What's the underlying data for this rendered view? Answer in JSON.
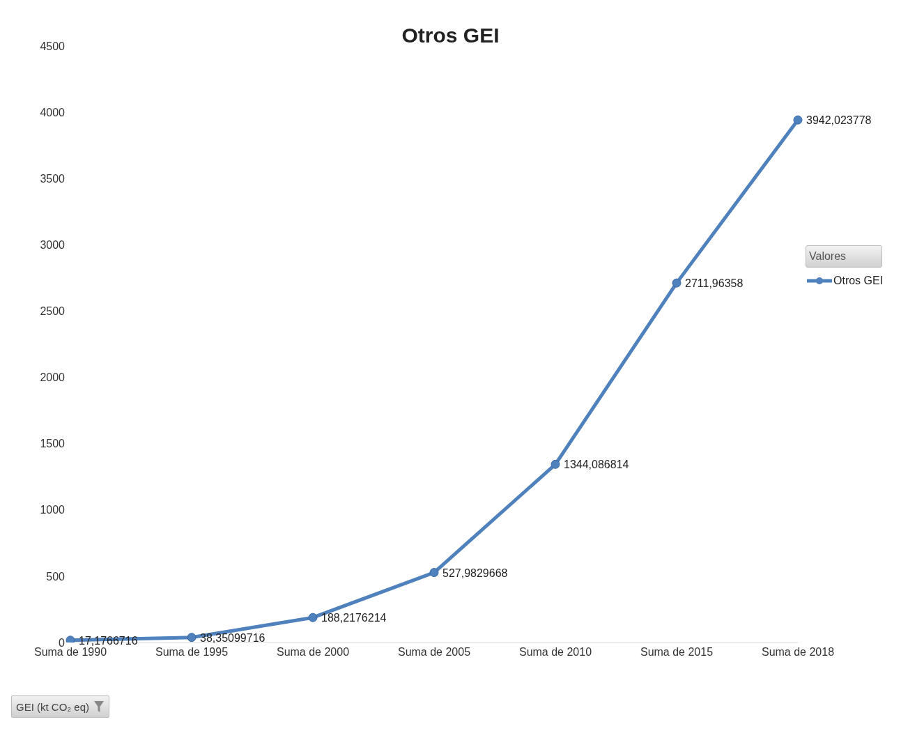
{
  "chart_data": {
    "type": "line",
    "title": "Otros GEI",
    "categories": [
      "Suma de 1990",
      "Suma de 1995",
      "Suma de 2000",
      "Suma de 2005",
      "Suma de 2010",
      "Suma de 2015",
      "Suma de 2018"
    ],
    "series": [
      {
        "name": "Otros GEI",
        "color": "#4f81bd",
        "values": [
          17.1766716,
          38.35099716,
          188.2176214,
          527.9829668,
          1344.086814,
          2711.96358,
          3942.023778
        ],
        "value_labels": [
          "17,1766716",
          "38,35099716",
          "188,2176214",
          "527,9829668",
          "1344,086814",
          "2711,96358",
          "3942,023778"
        ]
      }
    ],
    "ylim": [
      0,
      4500
    ],
    "yticks": [
      0,
      500,
      1000,
      1500,
      2000,
      2500,
      3000,
      3500,
      4000,
      4500
    ],
    "legend": "right",
    "legend_title": "Valores",
    "marker": "circle",
    "annotations": [
      "GEI (kt CO₂ eq)"
    ]
  }
}
